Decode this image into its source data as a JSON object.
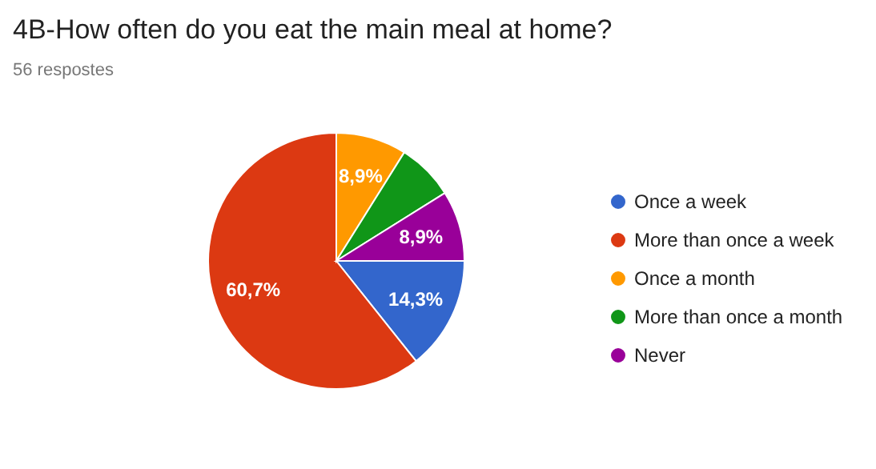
{
  "chart_data": {
    "type": "pie",
    "title": "4B-How often do you eat the main meal at home?",
    "subtitle": "56 respostes",
    "categories": [
      "Once a week",
      "More than once a week",
      "Once a month",
      "More than once a month",
      "Never"
    ],
    "values": [
      14.3,
      60.7,
      8.9,
      7.2,
      8.9
    ],
    "colors": [
      "#3366cc",
      "#dc3912",
      "#ff9900",
      "#109618",
      "#990099"
    ],
    "value_labels": [
      "14,3%",
      "60,7%",
      "8,9%",
      null,
      "8,9%"
    ],
    "legend": "right"
  }
}
